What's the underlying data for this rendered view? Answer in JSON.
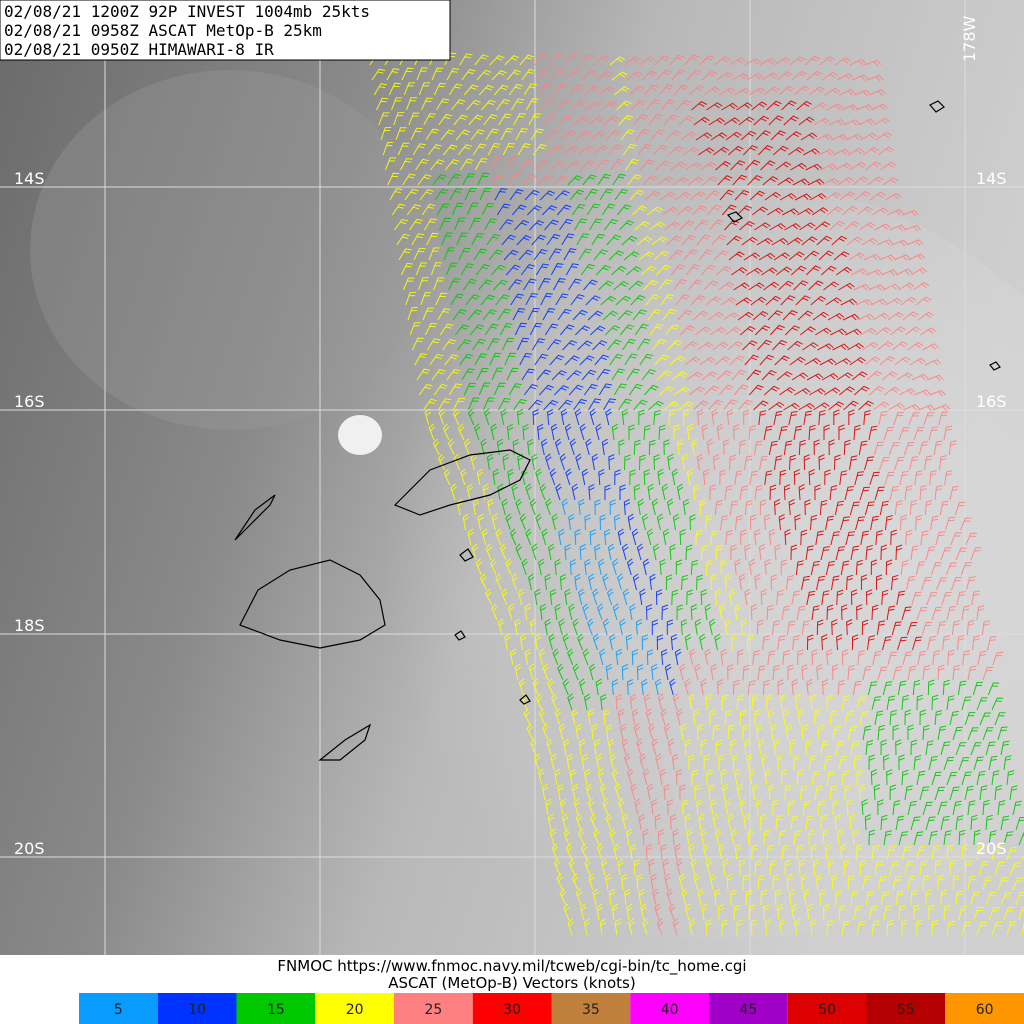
{
  "header": {
    "lines": [
      "02/08/21 1200Z  92P INVEST 1004mb 25kts",
      "02/08/21 0958Z  ASCAT MetOp-B 25km",
      "02/08/21 0950Z  HIMAWARI-8 IR"
    ]
  },
  "latitude_labels": {
    "left": [
      "14S",
      "16S",
      "18S",
      "20S"
    ],
    "right": [
      "14S",
      "16S",
      "20S"
    ]
  },
  "longitude_label": "178W",
  "footer": {
    "source": "FNMOC https://www.fnmoc.navy.mil/tcweb/cgi-bin/tc_home.cgi",
    "caption": "ASCAT (MetOp-B) Vectors (knots)"
  },
  "legend": [
    {
      "label": "5",
      "color": "#0a9bff"
    },
    {
      "label": "10",
      "color": "#0033ff"
    },
    {
      "label": "15",
      "color": "#00c800"
    },
    {
      "label": "20",
      "color": "#ffff00"
    },
    {
      "label": "25",
      "color": "#ff8080"
    },
    {
      "label": "30",
      "color": "#ff0000"
    },
    {
      "label": "35",
      "color": "#c0803c"
    },
    {
      "label": "40",
      "color": "#ff00ff"
    },
    {
      "label": "45",
      "color": "#a000c8"
    },
    {
      "label": "50",
      "color": "#dc0000"
    },
    {
      "label": "55",
      "color": "#b40000"
    },
    {
      "label": "60",
      "color": "#ff9600"
    }
  ]
}
